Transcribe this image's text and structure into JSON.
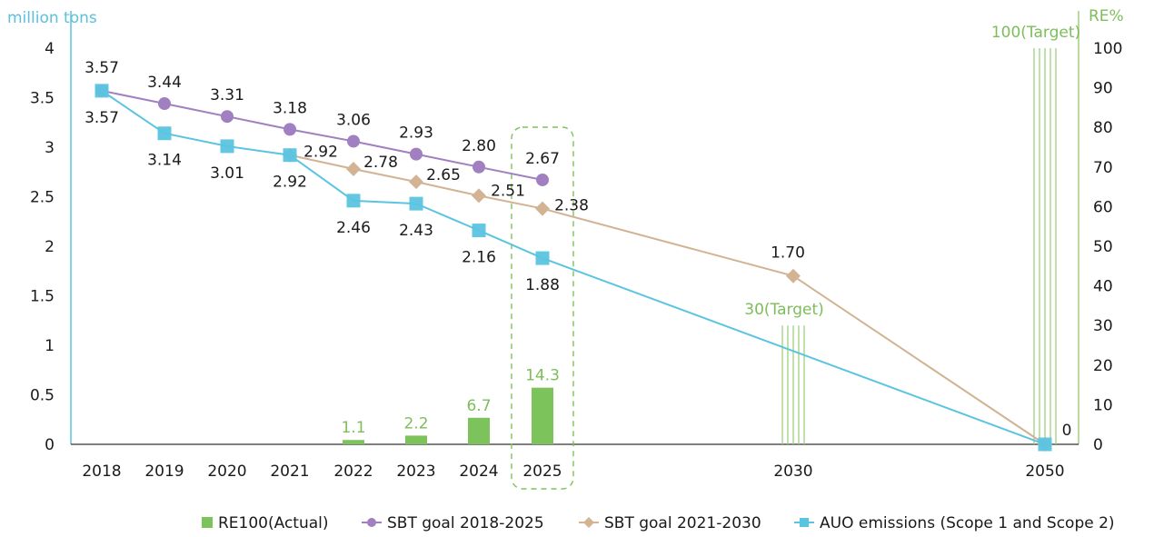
{
  "chart_data": {
    "type": "bar+line",
    "y_left_label": "million tons",
    "y_right_label": "RE%",
    "y_left_ticks": [
      "4",
      "3.5",
      "3",
      "2.5",
      "2",
      "1.5",
      "1",
      "0.5",
      "0"
    ],
    "y_right_ticks": [
      "100",
      "90",
      "80",
      "70",
      "60",
      "50",
      "40",
      "30",
      "20",
      "10",
      "0"
    ],
    "ylim_left": [
      0,
      4
    ],
    "ylim_right": [
      0,
      100
    ],
    "categories": [
      "2018",
      "2019",
      "2020",
      "2021",
      "2022",
      "2023",
      "2024",
      "2025",
      "2030",
      "2050"
    ],
    "series": [
      {
        "name": "RE100(Actual)",
        "kind": "bar",
        "axis": "right",
        "color": "#7dc35b",
        "points": [
          {
            "x": "2022",
            "y": 1.1,
            "label": "1.1"
          },
          {
            "x": "2023",
            "y": 2.2,
            "label": "2.2"
          },
          {
            "x": "2024",
            "y": 6.7,
            "label": "6.7"
          },
          {
            "x": "2025",
            "y": 14.3,
            "label": "14.3"
          }
        ]
      },
      {
        "name": "SBT goal 2018-2025",
        "kind": "line",
        "marker": "circle",
        "axis": "left",
        "color": "#a080c0",
        "points": [
          {
            "x": "2018",
            "y": 3.57,
            "label": "3.57"
          },
          {
            "x": "2019",
            "y": 3.44,
            "label": "3.44"
          },
          {
            "x": "2020",
            "y": 3.31,
            "label": "3.31"
          },
          {
            "x": "2021",
            "y": 3.18,
            "label": "3.18"
          },
          {
            "x": "2022",
            "y": 3.06,
            "label": "3.06"
          },
          {
            "x": "2023",
            "y": 2.93,
            "label": "2.93"
          },
          {
            "x": "2024",
            "y": 2.8,
            "label": "2.80"
          },
          {
            "x": "2025",
            "y": 2.67,
            "label": "2.67"
          }
        ]
      },
      {
        "name": "SBT goal 2021-2030",
        "kind": "line",
        "marker": "diamond",
        "axis": "left",
        "color": "#d2b394",
        "points": [
          {
            "x": "2021",
            "y": 2.92,
            "label": "2.92"
          },
          {
            "x": "2022",
            "y": 2.78,
            "label": "2.78"
          },
          {
            "x": "2023",
            "y": 2.65,
            "label": "2.65"
          },
          {
            "x": "2024",
            "y": 2.51,
            "label": "2.51"
          },
          {
            "x": "2025",
            "y": 2.38,
            "label": "2.38"
          },
          {
            "x": "2030",
            "y": 1.7,
            "label": "1.70"
          },
          {
            "x": "2050",
            "y": 0,
            "label": "0"
          }
        ]
      },
      {
        "name": "AUO emissions (Scope 1 and Scope 2)",
        "kind": "line",
        "marker": "square",
        "axis": "left",
        "color": "#5bc4e0",
        "points": [
          {
            "x": "2018",
            "y": 3.57,
            "label": "3.57"
          },
          {
            "x": "2019",
            "y": 3.14,
            "label": "3.14"
          },
          {
            "x": "2020",
            "y": 3.01,
            "label": "3.01"
          },
          {
            "x": "2021",
            "y": 2.92,
            "label": "2.92"
          },
          {
            "x": "2022",
            "y": 2.46,
            "label": "2.46"
          },
          {
            "x": "2023",
            "y": 2.43,
            "label": "2.43"
          },
          {
            "x": "2024",
            "y": 2.16,
            "label": "2.16"
          },
          {
            "x": "2025",
            "y": 1.88,
            "label": "1.88"
          },
          {
            "x": "2050",
            "y": 0
          }
        ]
      }
    ],
    "targets": [
      {
        "x": "2030",
        "y": 30,
        "label": "30(Target)",
        "color": "#7dc35b"
      },
      {
        "x": "2050",
        "y": 100,
        "label": "100(Target)",
        "color": "#7dc35b"
      }
    ],
    "highlight_category": "2025",
    "legend_position": "bottom-right",
    "grid": false
  }
}
